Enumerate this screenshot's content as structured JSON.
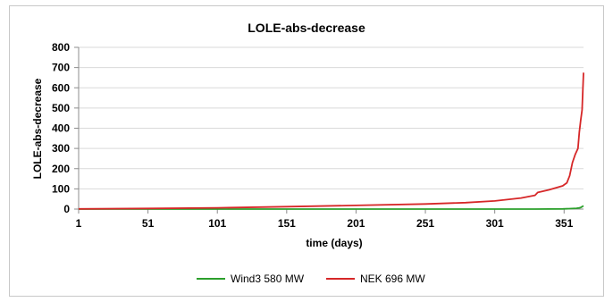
{
  "chart_data": {
    "type": "line",
    "title": "LOLE-abs-decrease",
    "xlabel": "time (days)",
    "ylabel": "LOLE-abs-decrease",
    "xlim": [
      1,
      365
    ],
    "ylim": [
      0,
      800
    ],
    "x_ticks": [
      "1",
      "51",
      "101",
      "151",
      "201",
      "251",
      "301",
      "351"
    ],
    "y_ticks": [
      "0",
      "100",
      "200",
      "300",
      "400",
      "500",
      "600",
      "700",
      "800"
    ],
    "grid": true,
    "legend_position": "bottom",
    "series": [
      {
        "name": "Wind3  580 MW",
        "color": "#2ca02c",
        "x": [
          1,
          51,
          101,
          151,
          201,
          251,
          301,
          330,
          350,
          355,
          360,
          362,
          363,
          364,
          365
        ],
        "y": [
          0,
          0,
          0,
          0,
          0,
          0,
          0,
          0,
          1,
          2,
          4,
          6,
          8,
          12,
          16
        ]
      },
      {
        "name": "NEK 696 MW",
        "color": "#d62728",
        "x": [
          1,
          51,
          101,
          151,
          201,
          251,
          280,
          301,
          320,
          330,
          332,
          340,
          345,
          350,
          353,
          355,
          357,
          359,
          361,
          362,
          363,
          364,
          365
        ],
        "y": [
          1,
          3,
          6,
          12,
          18,
          25,
          32,
          40,
          55,
          68,
          82,
          95,
          105,
          115,
          130,
          165,
          230,
          270,
          300,
          380,
          440,
          490,
          675
        ]
      }
    ]
  }
}
